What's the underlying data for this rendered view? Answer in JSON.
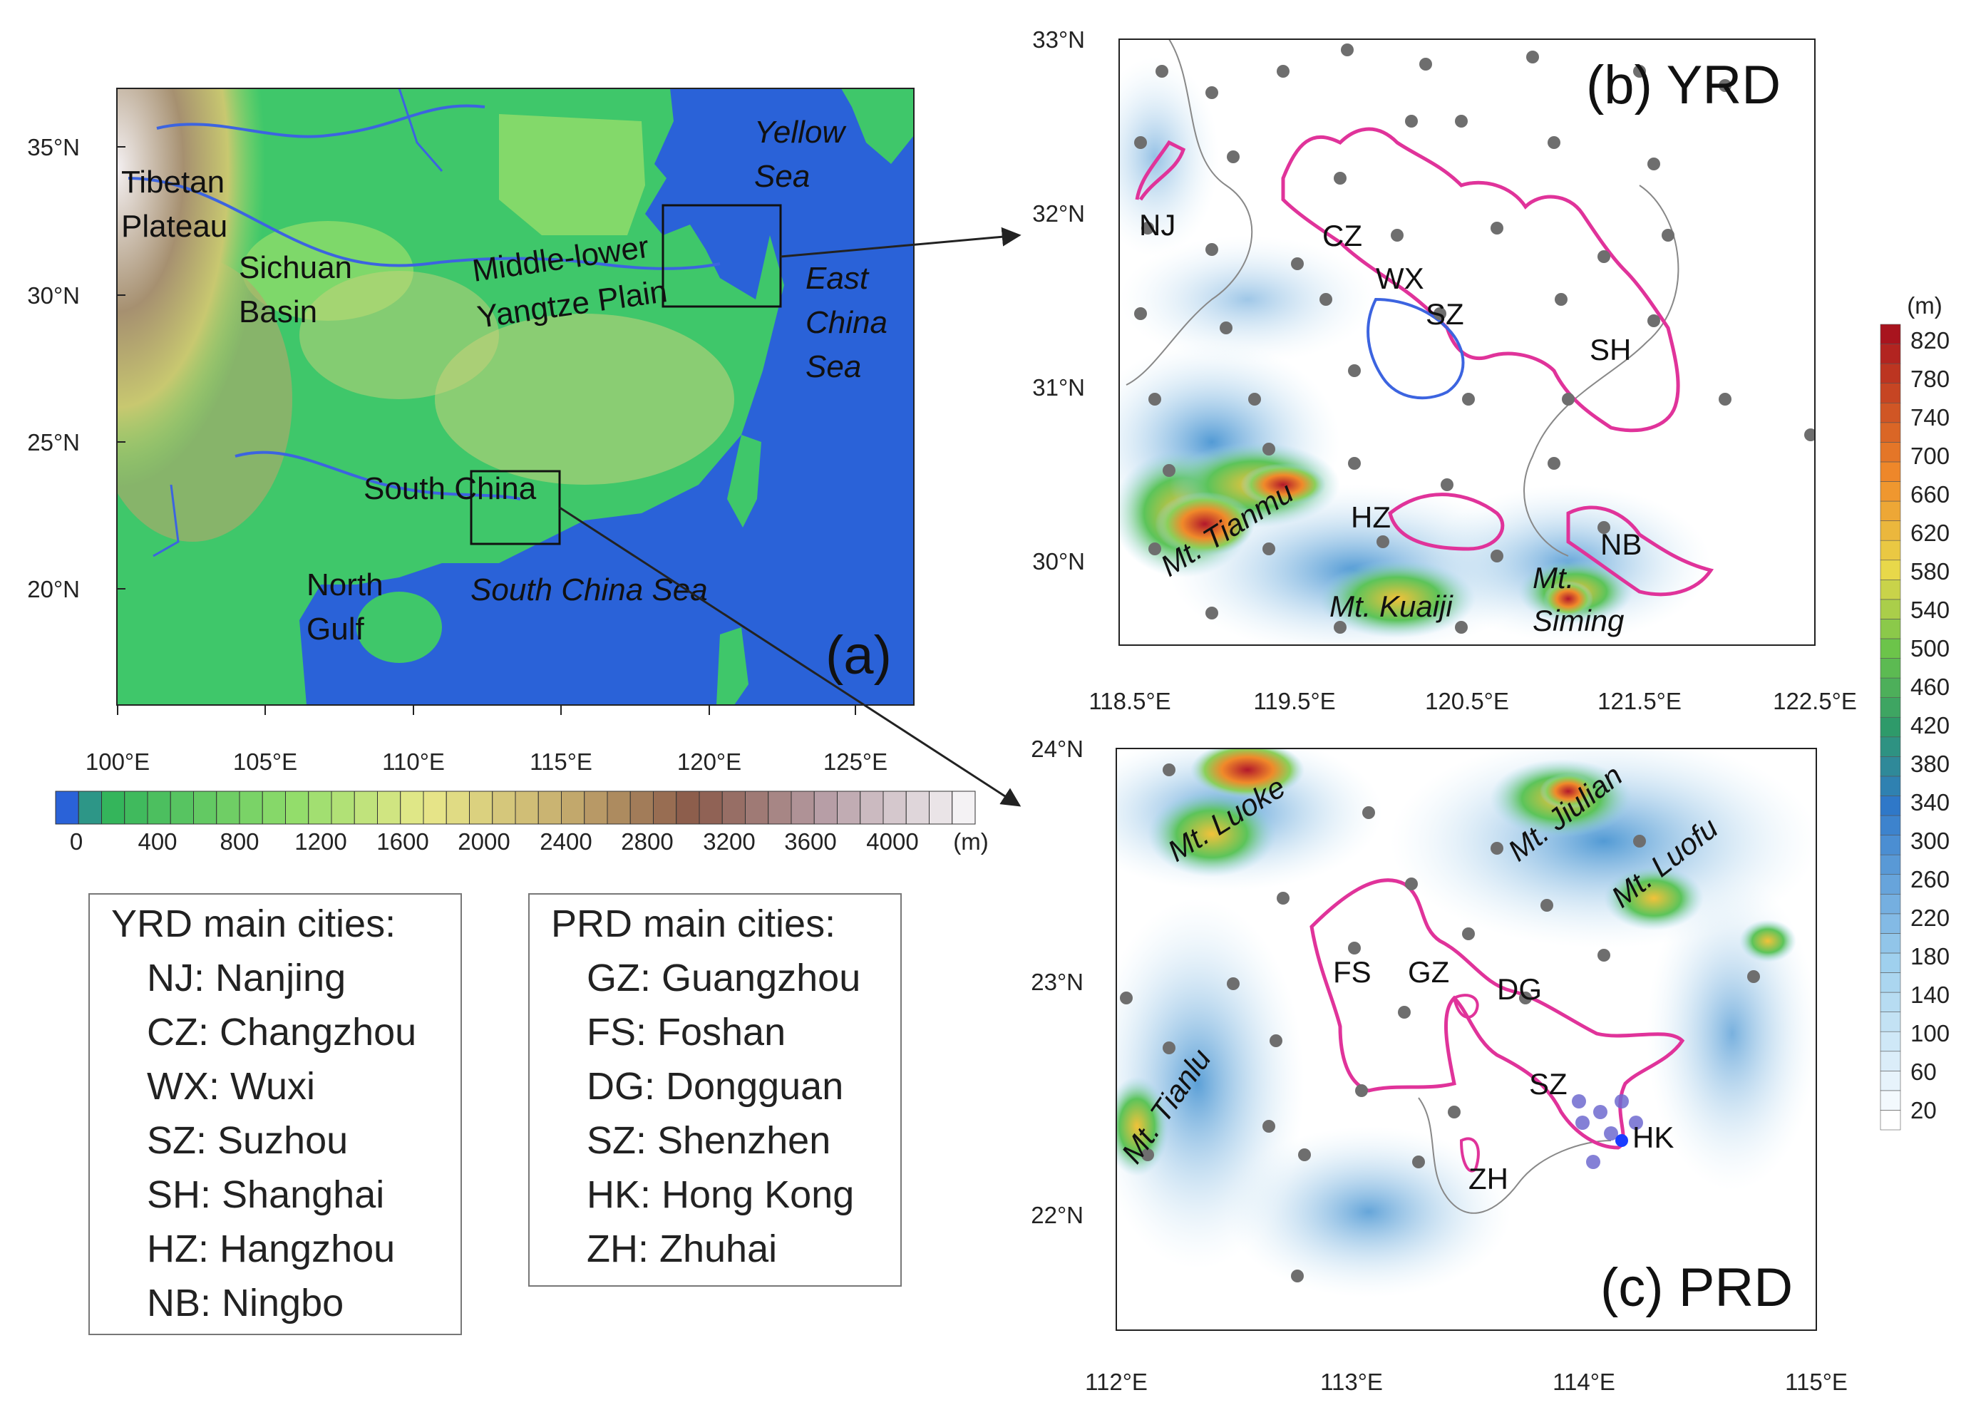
{
  "panel_a": {
    "tag": "(a)",
    "lat_ticks": [
      "35°N",
      "30°N",
      "25°N",
      "20°N"
    ],
    "lon_ticks": [
      "100°E",
      "105°E",
      "110°E",
      "115°E",
      "120°E",
      "125°E"
    ],
    "places": {
      "tibetan": [
        "Tibetan",
        "Plateau"
      ],
      "sichuan": [
        "Sichuan",
        "Basin"
      ],
      "yangtze": [
        "Middle-lower",
        "Yangtze Plain"
      ],
      "yellow_sea": [
        "Yellow",
        "Sea"
      ],
      "east_china_sea": [
        "East",
        "China",
        "Sea"
      ],
      "south_china": "South China",
      "north_gulf": [
        "North",
        "Gulf"
      ],
      "south_china_sea": "South China Sea"
    },
    "colorbar_ticks": [
      "0",
      "400",
      "800",
      "1200",
      "1600",
      "2000",
      "2400",
      "2800",
      "3200",
      "3600",
      "4000"
    ],
    "colorbar_unit": "(m)"
  },
  "panel_b": {
    "tag": "(b) YRD",
    "lat_ticks": [
      "33°N",
      "32°N",
      "31°N",
      "30°N"
    ],
    "lon_ticks": [
      "118.5°E",
      "119.5°E",
      "120.5°E",
      "121.5°E",
      "122.5°E"
    ],
    "cities": [
      "NJ",
      "CZ",
      "WX",
      "SZ",
      "SH",
      "HZ",
      "NB"
    ],
    "mountains": {
      "tianmu": "Mt. Tianmu",
      "kuaiji": "Mt. Kuaiji",
      "siming": [
        "Mt.",
        "Siming"
      ]
    }
  },
  "panel_c": {
    "tag": "(c) PRD",
    "lat_ticks": [
      "24°N",
      "23°N",
      "22°N"
    ],
    "lon_ticks": [
      "112°E",
      "113°E",
      "114°E",
      "115°E"
    ],
    "cities": [
      "FS",
      "GZ",
      "DG",
      "SZ",
      "HK",
      "ZH"
    ],
    "mountains": {
      "luoke": "Mt. Luoke",
      "jiulian": "Mt. Jiulian",
      "luofu": "Mt. Luofu",
      "tianlu": "Mt. Tianlu"
    }
  },
  "colorbar_right": {
    "unit": "(m)",
    "ticks": [
      "820",
      "780",
      "740",
      "700",
      "660",
      "620",
      "580",
      "540",
      "500",
      "460",
      "420",
      "380",
      "340",
      "300",
      "260",
      "220",
      "180",
      "140",
      "100",
      "60",
      "20"
    ]
  },
  "legend_yrd": {
    "title": "YRD main cities:",
    "items": [
      "NJ: Nanjing",
      "CZ: Changzhou",
      "WX: Wuxi",
      "SZ: Suzhou",
      "SH: Shanghai",
      "HZ: Hangzhou",
      "NB: Ningbo"
    ]
  },
  "legend_prd": {
    "title": "PRD main cities:",
    "items": [
      "GZ: Guangzhou",
      "FS: Foshan",
      "DG: Dongguan",
      "SZ: Shenzhen",
      "HK: Hong Kong",
      "ZH: Zhuhai"
    ]
  },
  "colors": {
    "sea": "#2a62d8",
    "lowland": "#3fc76a",
    "plain": "#8fdc6a",
    "hill": "#d8d07a",
    "high": "#a08a5e",
    "plateau": "#e8e2e6",
    "river": "#3c64e0",
    "urban": "#e0339a",
    "station": "#6e6e6e"
  }
}
